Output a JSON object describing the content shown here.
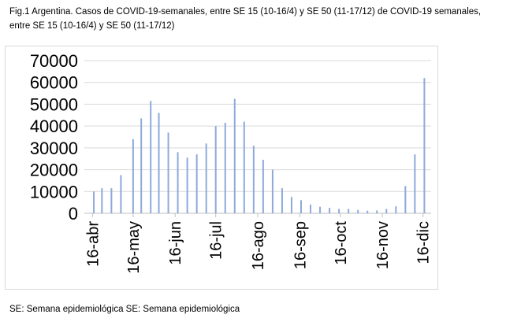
{
  "caption": "Fig.1 Argentina.  Casos de COVID-19-semanales, entre SE 15 (10-16/4) y SE 50 (11-17/12)  de COVID-19 semanales, entre SE 15 (10-16/4) y SE 50 (11-17/12)",
  "footnote": "SE: Semana epidemiológica SE: Semana epidemiológica",
  "chart_data": {
    "type": "bar",
    "title": "",
    "xlabel": "",
    "ylabel": "",
    "ylim": [
      0,
      70000
    ],
    "yticks": [
      0,
      10000,
      20000,
      30000,
      40000,
      50000,
      60000,
      70000
    ],
    "grid": true,
    "x_tick_labels": [
      "16-abr",
      "16-may",
      "16-jun",
      "16-jul",
      "16-ago",
      "16-sep",
      "16-oct",
      "16-nov",
      "16-dic"
    ],
    "x_tick_days": [
      0,
      30,
      61,
      91,
      122,
      153,
      183,
      214,
      244
    ],
    "bar_color": "#8ea9db",
    "bars": [
      {
        "day": 1,
        "value": 10000
      },
      {
        "day": 7,
        "value": 11500
      },
      {
        "day": 14,
        "value": 11500
      },
      {
        "day": 21,
        "value": 17500
      },
      {
        "day": 30,
        "value": 34000
      },
      {
        "day": 36,
        "value": 43500
      },
      {
        "day": 43,
        "value": 51500
      },
      {
        "day": 49,
        "value": 46000
      },
      {
        "day": 56,
        "value": 37000
      },
      {
        "day": 63,
        "value": 28000
      },
      {
        "day": 70,
        "value": 25500
      },
      {
        "day": 77,
        "value": 27000
      },
      {
        "day": 84,
        "value": 32000
      },
      {
        "day": 91,
        "value": 40000
      },
      {
        "day": 98,
        "value": 41500
      },
      {
        "day": 105,
        "value": 52500
      },
      {
        "day": 112,
        "value": 42000
      },
      {
        "day": 119,
        "value": 31000
      },
      {
        "day": 126,
        "value": 24500
      },
      {
        "day": 133,
        "value": 20000
      },
      {
        "day": 140,
        "value": 11500
      },
      {
        "day": 147,
        "value": 7500
      },
      {
        "day": 154,
        "value": 6000
      },
      {
        "day": 161,
        "value": 4000
      },
      {
        "day": 168,
        "value": 3000
      },
      {
        "day": 175,
        "value": 2500
      },
      {
        "day": 182,
        "value": 2000
      },
      {
        "day": 189,
        "value": 2000
      },
      {
        "day": 196,
        "value": 1500
      },
      {
        "day": 203,
        "value": 1200
      },
      {
        "day": 210,
        "value": 1300
      },
      {
        "day": 217,
        "value": 2000
      },
      {
        "day": 224,
        "value": 3200
      },
      {
        "day": 231,
        "value": 12500
      },
      {
        "day": 238,
        "value": 27000
      },
      {
        "day": 245,
        "value": 62000
      }
    ]
  }
}
